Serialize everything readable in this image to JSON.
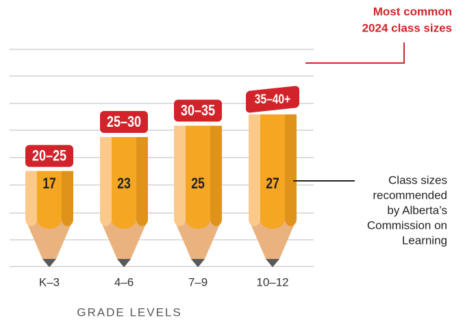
{
  "chart_data": {
    "type": "pencil-bar",
    "categories": [
      "K–3",
      "4–6",
      "7–9",
      "10–12"
    ],
    "values": [
      17,
      23,
      25,
      27
    ],
    "common_sizes": [
      "20–25",
      "25–30",
      "30–35",
      "35–40+"
    ],
    "x_label": "GRADE LEVELS",
    "annotations": {
      "common": [
        "Most common",
        "2024 class sizes"
      ],
      "recommended": [
        "Class sizes",
        "recommended",
        "by Alberta’s",
        "Commission on",
        "Learning"
      ]
    },
    "grid": true,
    "color": "#f5a623",
    "label_color": "#d2232a"
  }
}
